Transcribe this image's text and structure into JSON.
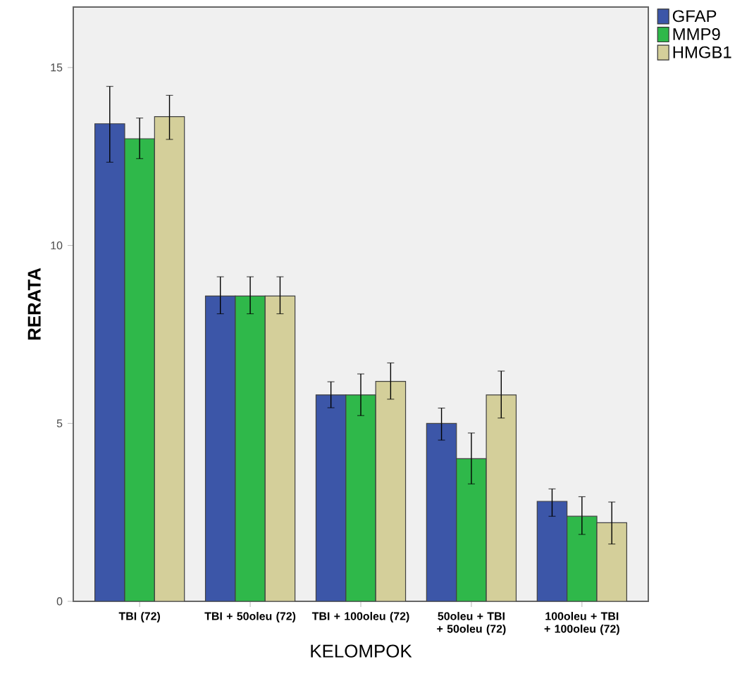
{
  "chart_data": {
    "type": "bar",
    "xlabel": "KELOMPOK",
    "ylabel": "RERATA",
    "categories": [
      "TBI (72)",
      "TBI + 50oleu (72)",
      "TBI + 100oleu (72)",
      "50oleu + TBI + 50oleu (72)",
      "100oleu + TBI + 100oleu (72)"
    ],
    "series": [
      {
        "name": "GFAP",
        "color": "#3c56a8",
        "values": [
          13.42,
          8.58,
          5.8,
          5.0,
          2.81
        ],
        "errors": [
          [
            12.34,
            14.47
          ],
          [
            8.08,
            9.12
          ],
          [
            5.44,
            6.17
          ],
          [
            4.53,
            5.43
          ],
          [
            2.39,
            3.16
          ]
        ]
      },
      {
        "name": "MMP9",
        "color": "#2fb84a",
        "values": [
          13.0,
          8.58,
          5.8,
          4.01,
          2.39
        ],
        "errors": [
          [
            12.44,
            13.58
          ],
          [
            8.08,
            9.12
          ],
          [
            5.22,
            6.39
          ],
          [
            3.3,
            4.73
          ],
          [
            1.88,
            2.94
          ]
        ]
      },
      {
        "name": "HMGB1",
        "color": "#d4cf9a",
        "values": [
          13.62,
          8.58,
          6.18,
          5.8,
          2.21
        ],
        "errors": [
          [
            12.98,
            14.22
          ],
          [
            8.08,
            9.12
          ],
          [
            5.68,
            6.7
          ],
          [
            5.15,
            6.47
          ],
          [
            1.61,
            2.79
          ]
        ]
      }
    ],
    "ylim": [
      0,
      16.7
    ],
    "yticks": [
      0,
      5,
      10,
      15
    ],
    "grid": false,
    "legend": "top right"
  }
}
